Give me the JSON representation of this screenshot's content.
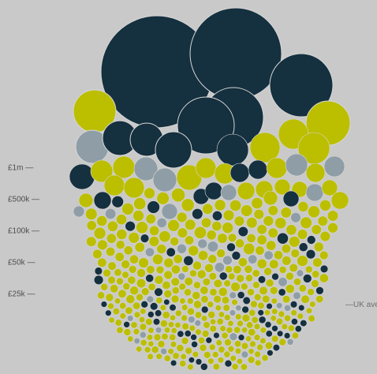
{
  "chart_data": {
    "type": "scatter",
    "subtype": "packed-bubble",
    "y_axis": {
      "scale": "log",
      "tick_labels": [
        "£1m",
        "£500k",
        "£100k",
        "£50k",
        "£25k"
      ],
      "tick_values": [
        1000000,
        500000,
        100000,
        50000,
        25000
      ]
    },
    "reference_line": {
      "label": "UK ave",
      "note": "label truncated at right edge of image"
    },
    "colors": {
      "background": "#c9c9c9",
      "navy": "#15303f",
      "yellow": "#bcbe00",
      "grey": "#8f9ea6",
      "tick_text": "#4d4d4d"
    },
    "large_bubbles": [
      {
        "color": "navy",
        "relative_size": 1.0
      },
      {
        "color": "navy",
        "relative_size": 0.82
      },
      {
        "color": "navy",
        "relative_size": 0.57
      },
      {
        "color": "navy",
        "relative_size": 0.53
      },
      {
        "color": "navy",
        "relative_size": 0.5
      },
      {
        "color": "yellow",
        "relative_size": 0.37
      },
      {
        "color": "yellow",
        "relative_size": 0.39
      },
      {
        "color": "grey",
        "relative_size": 0.3
      }
    ]
  }
}
